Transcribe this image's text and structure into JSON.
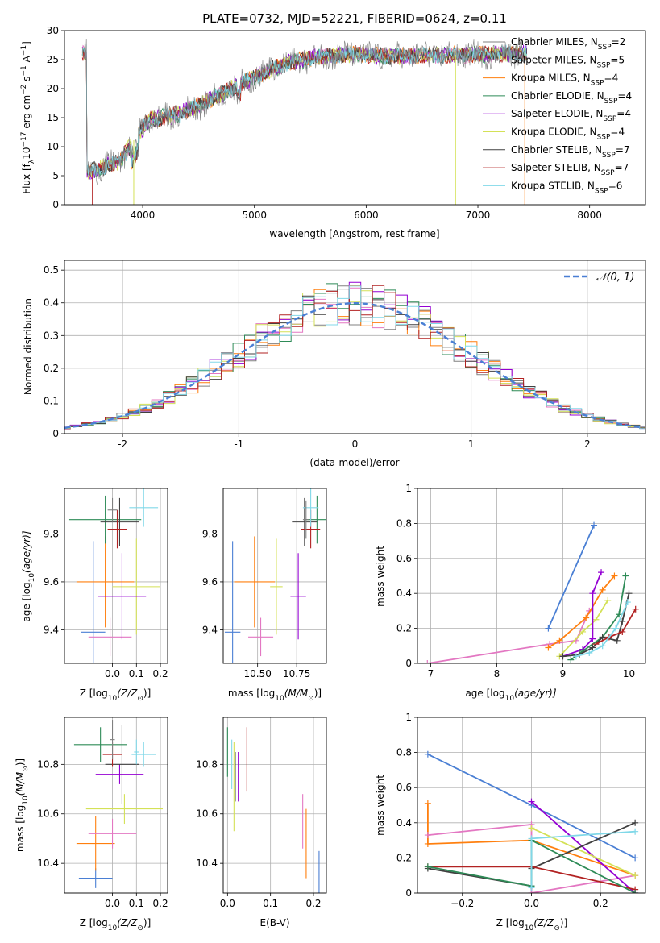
{
  "figure": {
    "title": "PLATE=0732, MJD=52221, FIBERID=0624, z=0.11"
  },
  "colors": {
    "CM": "#808080",
    "SM": "#e377c2",
    "KM": "#ff7f0e",
    "CE": "#2e8b57",
    "SE": "#9400d3",
    "KE": "#d4e157",
    "CS": "#404040",
    "SS": "#b22222",
    "KS": "#80d8e8",
    "extra": "#4a7fd4"
  },
  "chart_data": [
    {
      "id": "spectrum",
      "type": "line",
      "title": "PLATE=0732, MJD=52221, FIBERID=0624, z=0.11",
      "xlabel": "wavelength [Angstrom, rest frame]",
      "ylabel_main": "Flux [f",
      "ylabel_sub": "λ",
      "ylabel_tail": "10",
      "ylabel_exp": "−17",
      "ylabel_rest": " erg cm",
      "ylabel_exp2": "−2",
      "ylabel_rest2": " s",
      "ylabel_exp3": "−1",
      "ylabel_rest3": " A",
      "ylabel_exp4": "−1",
      "ylabel_end": "]",
      "xlim": [
        3300,
        8500
      ],
      "ylim": [
        0,
        30
      ],
      "xticks": [
        4000,
        5000,
        6000,
        7000,
        8000
      ],
      "yticks": [
        0,
        5,
        10,
        15,
        20,
        25,
        30
      ],
      "grid": false,
      "legend_position": "top-right",
      "series": [
        {
          "name": "Chabrier MILES",
          "nssp": "2",
          "key": "CM"
        },
        {
          "name": "Salpeter MILES",
          "nssp": "5",
          "key": "SM"
        },
        {
          "name": "Kroupa MILES",
          "nssp": "4",
          "key": "KM"
        },
        {
          "name": "Chabrier ELODIE",
          "nssp": "4",
          "key": "CE"
        },
        {
          "name": "Salpeter ELODIE",
          "nssp": "4",
          "key": "SE"
        },
        {
          "name": "Kroupa ELODIE",
          "nssp": "4",
          "key": "KE"
        },
        {
          "name": "Chabrier STELIB",
          "nssp": "7",
          "key": "CS"
        },
        {
          "name": "Salpeter STELIB",
          "nssp": "7",
          "key": "SS"
        },
        {
          "name": "Kroupa STELIB",
          "nssp": "6",
          "key": "KS"
        }
      ],
      "continuum": [
        [
          3500,
          5.5
        ],
        [
          3650,
          6.5
        ],
        [
          3800,
          7.5
        ],
        [
          3950,
          12
        ],
        [
          4050,
          14.5
        ],
        [
          4300,
          15.5
        ],
        [
          4500,
          17
        ],
        [
          4800,
          20
        ],
        [
          5000,
          22
        ],
        [
          5300,
          24.5
        ],
        [
          5600,
          25.5
        ],
        [
          5900,
          26
        ],
        [
          6200,
          25.5
        ],
        [
          6500,
          25.8
        ],
        [
          7000,
          25.8
        ],
        [
          7400,
          26.2
        ]
      ],
      "cutoffs": [
        {
          "x": 3920,
          "key": "KE"
        },
        {
          "x": 6800,
          "key": "KE"
        },
        {
          "x": 7420,
          "key": "KM"
        },
        {
          "x": 3550,
          "key": "SS"
        }
      ]
    },
    {
      "id": "residuals",
      "type": "histogram",
      "xlabel": "(data-model)/error",
      "ylabel": "Normed distribution",
      "xlim": [
        -2.5,
        2.5
      ],
      "ylim": [
        0,
        0.53
      ],
      "xticks": [
        -2,
        -1,
        0,
        1,
        2
      ],
      "yticks": [
        0.0,
        0.1,
        0.2,
        0.3,
        0.4,
        0.5
      ],
      "grid": true,
      "legend": "𝒩(0, 1)",
      "legend_position": "top-right",
      "bin_width": 0.1,
      "reference": {
        "name": "N(0,1)",
        "mean": 0,
        "sigma": 1,
        "key": "extra"
      }
    },
    {
      "id": "age-vs-Z",
      "type": "scatter",
      "xlabel": "Z [log",
      "xlabel_sub": "10",
      "xlabel_rest": "(Z/Z",
      "xlabel_sub2": "⊙",
      "xlabel_end": ")]",
      "ylabel": "age  [log",
      "ylabel_sub": "10",
      "ylabel_rest": "(age/yr)]",
      "xlim": [
        -0.2,
        0.23
      ],
      "ylim": [
        9.26,
        9.99
      ],
      "xticks": [
        0.0,
        0.1,
        0.2
      ],
      "xtick_labels": [
        "0.0",
        "0.1",
        "0.2"
      ],
      "yticks": [
        9.4,
        9.6,
        9.8
      ],
      "grid": true,
      "points": [
        {
          "key": "extra",
          "x": -0.08,
          "xerr": 0.05,
          "y": 9.39,
          "yerr": 0.38
        },
        {
          "key": "SM",
          "x": -0.01,
          "xerr": 0.09,
          "y": 9.37,
          "yerr": 0.08
        },
        {
          "key": "KM",
          "x": -0.03,
          "xerr": 0.12,
          "y": 9.6,
          "yerr": 0.19
        },
        {
          "key": "KE",
          "x": 0.1,
          "xerr": 0.1,
          "y": 9.58,
          "yerr": 0.2
        },
        {
          "key": "SE",
          "x": 0.04,
          "xerr": 0.1,
          "y": 9.54,
          "yerr": 0.18
        },
        {
          "key": "CE",
          "x": -0.03,
          "xerr": 0.15,
          "y": 9.86,
          "yerr": 0.1
        },
        {
          "key": "CS",
          "x": 0.03,
          "xerr": 0.08,
          "y": 9.85,
          "yerr": 0.1
        },
        {
          "key": "SS",
          "x": 0.02,
          "xerr": 0.04,
          "y": 9.82,
          "yerr": 0.08
        },
        {
          "key": "KS",
          "x": 0.13,
          "xerr": 0.06,
          "y": 9.91,
          "yerr": 0.08
        },
        {
          "key": "CM",
          "x": 0.0,
          "xerr": 0.02,
          "y": 9.9,
          "yerr": 0.05
        }
      ]
    },
    {
      "id": "age-vs-mass",
      "type": "scatter",
      "xlabel": "mass [log",
      "xlabel_sub": "10",
      "xlabel_rest": "(M/M",
      "xlabel_sub2": "⊙",
      "xlabel_end": ")]",
      "xlim": [
        10.28,
        10.94
      ],
      "ylim": [
        9.26,
        9.99
      ],
      "xticks": [
        10.5,
        10.75
      ],
      "xtick_labels": [
        "10.50",
        "10.75"
      ],
      "yticks": [
        9.4,
        9.6,
        9.8
      ],
      "grid": true,
      "points": [
        {
          "key": "extra",
          "x": 10.34,
          "xerr": 0.05,
          "y": 9.39,
          "yerr": 0.38
        },
        {
          "key": "SM",
          "x": 10.52,
          "xerr": 0.08,
          "y": 9.37,
          "yerr": 0.08
        },
        {
          "key": "KM",
          "x": 10.48,
          "xerr": 0.13,
          "y": 9.6,
          "yerr": 0.19
        },
        {
          "key": "KE",
          "x": 10.62,
          "xerr": 0.04,
          "y": 9.58,
          "yerr": 0.2
        },
        {
          "key": "SE",
          "x": 10.76,
          "xerr": 0.05,
          "y": 9.54,
          "yerr": 0.18
        },
        {
          "key": "CE",
          "x": 10.88,
          "xerr": 0.08,
          "y": 9.86,
          "yerr": 0.1
        },
        {
          "key": "CS",
          "x": 10.8,
          "xerr": 0.08,
          "y": 9.85,
          "yerr": 0.1
        },
        {
          "key": "SS",
          "x": 10.84,
          "xerr": 0.06,
          "y": 9.82,
          "yerr": 0.08
        },
        {
          "key": "KS",
          "x": 10.84,
          "xerr": 0.05,
          "y": 9.91,
          "yerr": 0.08
        },
        {
          "key": "CM",
          "x": 10.81,
          "xerr": 0.02,
          "y": 9.86,
          "yerr": 0.08
        }
      ]
    },
    {
      "id": "mass-weight-vs-age",
      "type": "line",
      "xlabel": "age  [log",
      "xlabel_sub": "10",
      "xlabel_rest": "(age/yr)]",
      "ylabel": "mass weight",
      "xlim": [
        6.8,
        10.25
      ],
      "ylim": [
        0,
        1.0
      ],
      "xticks": [
        7,
        8,
        9,
        10
      ],
      "yticks": [
        0.0,
        0.2,
        0.4,
        0.6,
        0.8,
        1.0
      ],
      "grid": true,
      "series": [
        {
          "key": "extra",
          "points": [
            [
              8.78,
              0.2
            ],
            [
              9.47,
              0.79
            ]
          ]
        },
        {
          "key": "SM",
          "points": [
            [
              6.95,
              0.0
            ],
            [
              8.8,
              0.11
            ],
            [
              9.2,
              0.13
            ],
            [
              9.4,
              0.3
            ]
          ]
        },
        {
          "key": "KM",
          "points": [
            [
              8.78,
              0.09
            ],
            [
              8.95,
              0.13
            ],
            [
              9.35,
              0.26
            ],
            [
              9.6,
              0.42
            ],
            [
              9.78,
              0.5
            ]
          ]
        },
        {
          "key": "KE",
          "points": [
            [
              8.95,
              0.04
            ],
            [
              9.3,
              0.18
            ],
            [
              9.5,
              0.25
            ],
            [
              9.68,
              0.36
            ]
          ]
        },
        {
          "key": "SE",
          "points": [
            [
              9.0,
              0.04
            ],
            [
              9.3,
              0.08
            ],
            [
              9.45,
              0.14
            ],
            [
              9.45,
              0.4
            ],
            [
              9.58,
              0.52
            ]
          ]
        },
        {
          "key": "CE",
          "points": [
            [
              9.12,
              0.02
            ],
            [
              9.3,
              0.07
            ],
            [
              9.6,
              0.15
            ],
            [
              9.85,
              0.28
            ],
            [
              9.95,
              0.5
            ]
          ]
        },
        {
          "key": "CS",
          "points": [
            [
              9.0,
              0.04
            ],
            [
              9.25,
              0.05
            ],
            [
              9.45,
              0.09
            ],
            [
              9.6,
              0.15
            ],
            [
              9.82,
              0.13
            ],
            [
              9.9,
              0.24
            ],
            [
              10.0,
              0.4
            ]
          ]
        },
        {
          "key": "SS",
          "points": [
            [
              9.5,
              0.11
            ],
            [
              9.7,
              0.15
            ],
            [
              9.9,
              0.18
            ],
            [
              10.1,
              0.31
            ]
          ]
        },
        {
          "key": "KS",
          "points": [
            [
              9.2,
              0.04
            ],
            [
              9.4,
              0.06
            ],
            [
              9.6,
              0.1
            ],
            [
              9.8,
              0.2
            ],
            [
              9.98,
              0.35
            ]
          ]
        }
      ]
    },
    {
      "id": "mass-vs-Z",
      "type": "scatter",
      "xlabel": "Z [log",
      "xlabel_sub": "10",
      "xlabel_rest": "(Z/Z",
      "xlabel_sub2": "⊙",
      "xlabel_end": ")]",
      "ylabel": "mass [log",
      "ylabel_sub": "10",
      "ylabel_rest": "(M/M",
      "ylabel_sub2": "⊙",
      "ylabel_end": ")]",
      "xlim": [
        -0.2,
        0.23
      ],
      "ylim": [
        10.28,
        10.99
      ],
      "xticks": [
        0.0,
        0.1,
        0.2
      ],
      "xtick_labels": [
        "0.0",
        "0.1",
        "0.2"
      ],
      "yticks": [
        10.4,
        10.6,
        10.8
      ],
      "ytick_labels": [
        "10.4",
        "10.6",
        "10.8"
      ],
      "grid": true,
      "points": [
        {
          "key": "extra",
          "x": -0.07,
          "xerr": 0.07,
          "y": 10.34,
          "yerr": 0.04
        },
        {
          "key": "KM",
          "x": -0.07,
          "xerr": 0.08,
          "y": 10.48,
          "yerr": 0.11
        },
        {
          "key": "SM",
          "x": 0.0,
          "xerr": 0.1,
          "y": 10.52,
          "yerr": 0.06
        },
        {
          "key": "KE",
          "x": 0.05,
          "xerr": 0.16,
          "y": 10.62,
          "yerr": 0.06
        },
        {
          "key": "SE",
          "x": 0.03,
          "xerr": 0.1,
          "y": 10.76,
          "yerr": 0.04
        },
        {
          "key": "CS",
          "x": 0.04,
          "xerr": 0.07,
          "y": 10.8,
          "yerr": 0.16
        },
        {
          "key": "SS",
          "x": 0.0,
          "xerr": 0.04,
          "y": 10.84,
          "yerr": 0.05
        },
        {
          "key": "KS",
          "x": 0.13,
          "xerr": 0.05,
          "y": 10.84,
          "yerr": 0.05
        },
        {
          "key": "CE",
          "x": -0.05,
          "xerr": 0.11,
          "y": 10.88,
          "yerr": 0.07
        },
        {
          "key": "CM",
          "x": 0.0,
          "xerr": 0.01,
          "y": 10.9,
          "yerr": 0.08
        },
        {
          "key": "KS",
          "x": 0.1,
          "xerr": 0.01,
          "y": 10.85,
          "yerr": 0.05
        }
      ]
    },
    {
      "id": "mass-vs-ebv",
      "type": "scatter",
      "xlabel": "E(B-V)",
      "xlim": [
        -0.01,
        0.23
      ],
      "ylim": [
        10.28,
        10.99
      ],
      "xticks": [
        0.0,
        0.1,
        0.2
      ],
      "xtick_labels": [
        "0.0",
        "0.1",
        "0.2"
      ],
      "yticks": [
        10.4,
        10.6,
        10.8
      ],
      "ytick_labels": [
        "10.4",
        "10.6",
        "10.8"
      ],
      "grid": true,
      "points": [
        {
          "key": "CE",
          "x": 0.0,
          "y": 10.85,
          "yerr": 0.1
        },
        {
          "key": "KS",
          "x": 0.01,
          "y": 10.8,
          "yerr": 0.1
        },
        {
          "key": "KE",
          "x": 0.015,
          "y": 10.71,
          "yerr": 0.18
        },
        {
          "key": "CS",
          "x": 0.018,
          "y": 10.75,
          "yerr": 0.1
        },
        {
          "key": "SE",
          "x": 0.025,
          "y": 10.75,
          "yerr": 0.1
        },
        {
          "key": "SS",
          "x": 0.045,
          "y": 10.82,
          "yerr": 0.13
        },
        {
          "key": "SM",
          "x": 0.175,
          "y": 10.57,
          "yerr": 0.11
        },
        {
          "key": "KM",
          "x": 0.183,
          "y": 10.48,
          "yerr": 0.14
        },
        {
          "key": "extra",
          "x": 0.213,
          "y": 10.34,
          "yerr": 0.11
        }
      ]
    },
    {
      "id": "mass-weight-vs-Z",
      "type": "line",
      "xlabel": "Z [log",
      "xlabel_sub": "10",
      "xlabel_rest": "(Z/Z",
      "xlabel_sub2": "⊙",
      "xlabel_end": ")]",
      "ylabel": "mass weight",
      "xlim": [
        -0.33,
        0.33
      ],
      "ylim": [
        0,
        1.0
      ],
      "xticks": [
        -0.2,
        0.0,
        0.2
      ],
      "xtick_labels": [
        "−0.2",
        "0.0",
        "0.2"
      ],
      "yticks": [
        0.0,
        0.2,
        0.4,
        0.6,
        0.8,
        1.0
      ],
      "grid": true,
      "series": [
        {
          "key": "extra",
          "points": [
            [
              -0.3,
              0.79
            ],
            [
              0.0,
              0.5
            ],
            [
              0.3,
              0.2
            ]
          ]
        },
        {
          "key": "KM",
          "points": [
            [
              -0.3,
              0.51
            ],
            [
              -0.3,
              0.28
            ],
            [
              0.0,
              0.3
            ],
            [
              0.3,
              0.1
            ]
          ]
        },
        {
          "key": "SM",
          "points": [
            [
              -0.3,
              0.33
            ],
            [
              0.0,
              0.39
            ],
            [
              0.0,
              0.0
            ],
            [
              0.3,
              0.1
            ]
          ]
        },
        {
          "key": "SE",
          "points": [
            [
              0.0,
              0.52
            ],
            [
              0.3,
              0.0
            ]
          ]
        },
        {
          "key": "KE",
          "points": [
            [
              0.0,
              0.37
            ],
            [
              0.3,
              0.1
            ]
          ]
        },
        {
          "key": "CS",
          "points": [
            [
              -0.3,
              0.14
            ],
            [
              0.0,
              0.04
            ],
            [
              0.0,
              0.14
            ],
            [
              0.3,
              0.4
            ]
          ]
        },
        {
          "key": "SS",
          "points": [
            [
              -0.3,
              0.15
            ],
            [
              0.0,
              0.15
            ],
            [
              0.3,
              0.02
            ]
          ]
        },
        {
          "key": "CE",
          "points": [
            [
              -0.3,
              0.15
            ],
            [
              0.0,
              0.04
            ],
            [
              0.0,
              0.3
            ],
            [
              0.3,
              0.0
            ]
          ]
        },
        {
          "key": "KS",
          "points": [
            [
              0.0,
              0.03
            ],
            [
              0.0,
              0.31
            ],
            [
              0.3,
              0.35
            ]
          ]
        }
      ]
    }
  ]
}
